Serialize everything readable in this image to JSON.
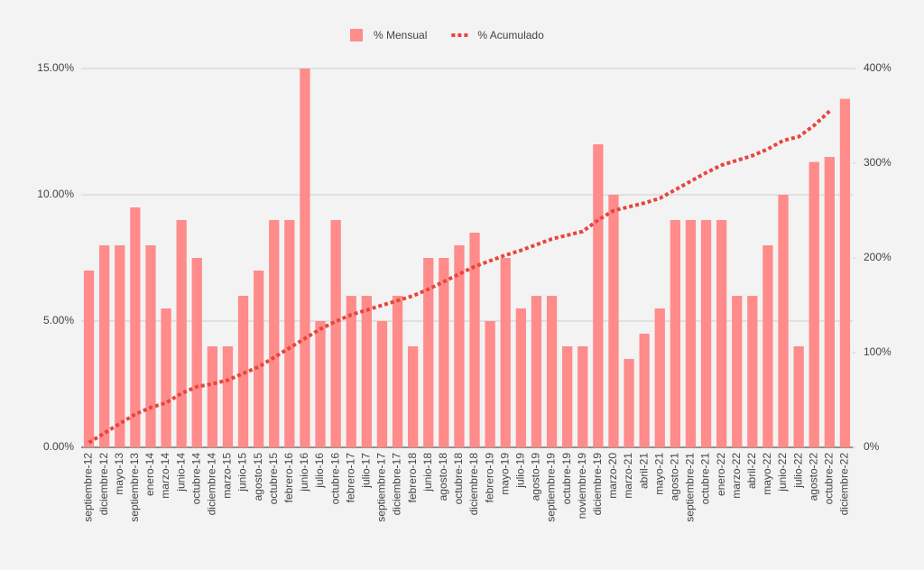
{
  "chart_data": {
    "type": "bar-line",
    "categories": [
      "septiembre-12",
      "diciembre-12",
      "mayo-13",
      "septiembre-13",
      "enero-14",
      "marzo-14",
      "junio-14",
      "octubre-14",
      "diciembre-14",
      "marzo-15",
      "junio-15",
      "agosto-15",
      "octubre-15",
      "febrero-16",
      "junio-16",
      "julio-16",
      "octubre-16",
      "febrero-17",
      "julio-17",
      "septiembre-17",
      "diciembre-17",
      "febrero-18",
      "junio-18",
      "agosto-18",
      "octubre-18",
      "diciembre-18",
      "febrero-19",
      "mayo-19",
      "julio-19",
      "agosto-19",
      "septiembre-19",
      "octubre-19",
      "noviembre-19",
      "diciembre-19",
      "marzo-20",
      "marzo-21",
      "abril-21",
      "mayo-21",
      "agosto-21",
      "septiembre-21",
      "octubre-21",
      "enero-22",
      "marzo-22",
      "abril-22",
      "mayo-22",
      "junio-22",
      "julio-22",
      "agosto-22",
      "octubre-22",
      "diciembre-22"
    ],
    "series": [
      {
        "name": "% Mensual",
        "color": "#ff8b8b",
        "type": "bar",
        "values": [
          7,
          8,
          8,
          9.5,
          8,
          5.5,
          9,
          7.5,
          4,
          4,
          6,
          7,
          9,
          9,
          15,
          5,
          9,
          6,
          6,
          5,
          6,
          4,
          7.5,
          7.5,
          8,
          8.5,
          5,
          7.5,
          5.5,
          6,
          6,
          4,
          4,
          12,
          10,
          3.5,
          4.5,
          5.5,
          9,
          9,
          9,
          9,
          6,
          6,
          8,
          10,
          4,
          11.3,
          11.5,
          13.8
        ]
      },
      {
        "name": "% Acumulado",
        "color": "#e8453c",
        "type": "line",
        "axis": "y2",
        "values": [
          5,
          15,
          25,
          35,
          42,
          47,
          57,
          64,
          67,
          71,
          78,
          85,
          95,
          105,
          115,
          125,
          133,
          140,
          145,
          150,
          155,
          160,
          167,
          175,
          183,
          191,
          197,
          203,
          208,
          214,
          220,
          224,
          228,
          240,
          250,
          254,
          258,
          263,
          272,
          281,
          290,
          298,
          303,
          308,
          315,
          324,
          328,
          340,
          355,
          null
        ]
      }
    ],
    "ylim": [
      0,
      15
    ],
    "yticks": [
      {
        "value": 0,
        "label": "0.00%"
      },
      {
        "value": 5,
        "label": "5.00%"
      },
      {
        "value": 10,
        "label": "10.00%"
      },
      {
        "value": 15,
        "label": "15.00%"
      }
    ],
    "y2lim": [
      0,
      400
    ],
    "y2ticks": [
      {
        "value": 0,
        "label": "0%"
      },
      {
        "value": 100,
        "label": "100%"
      },
      {
        "value": 200,
        "label": "200%"
      },
      {
        "value": 300,
        "label": "300%"
      },
      {
        "value": 400,
        "label": "400%"
      }
    ],
    "grid": true,
    "legend": "top"
  }
}
